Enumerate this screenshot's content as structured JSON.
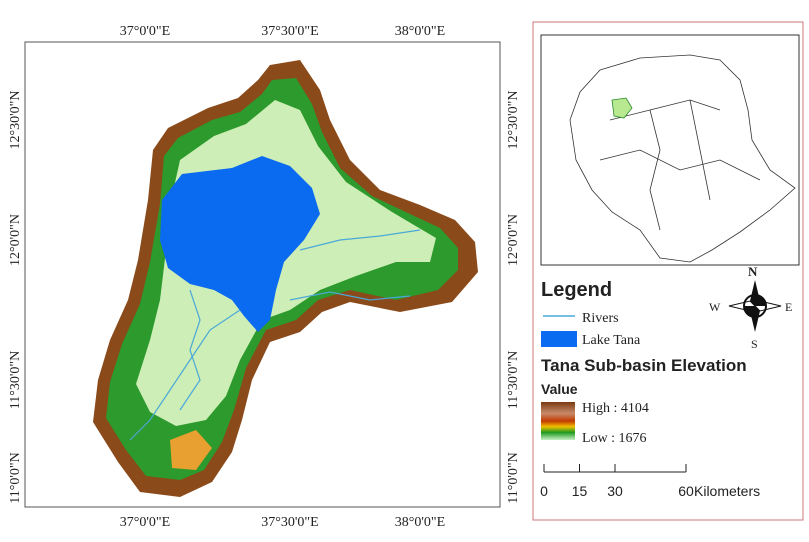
{
  "map": {
    "graticule": {
      "top": [
        "37°0'0\"E",
        "37°30'0\"E",
        "38°0'0\"E"
      ],
      "bottom": [
        "37°0'0\"E",
        "37°30'0\"E",
        "38°0'0\"E"
      ],
      "left": [
        "12°30'0\"N",
        "12°0'0\"N",
        "11°30'0\"N",
        "11°0'0\"N"
      ],
      "right": [
        "12°30'0\"N",
        "12°0'0\"N",
        "11°30'0\"N",
        "11°0'0\"N"
      ]
    },
    "legend": {
      "title": "Legend",
      "items": [
        "Rivers",
        "Lake Tana"
      ],
      "elevation_title": "Tana Sub-basin Elevation",
      "value_label": "Value",
      "high": "High : 4104",
      "low": "Low : 1676"
    },
    "compass": {
      "n": "N",
      "s": "S",
      "e": "E",
      "w": "W"
    },
    "scale_bar": {
      "ticks": [
        0,
        15,
        30,
        60
      ],
      "unit": "Kilometers"
    }
  }
}
